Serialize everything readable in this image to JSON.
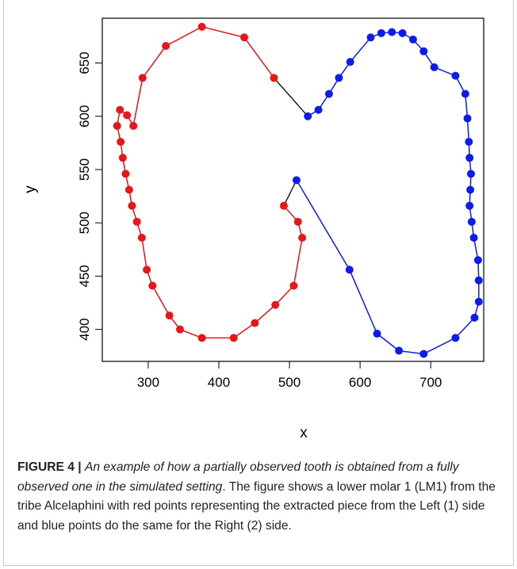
{
  "chart_data": {
    "type": "scatter",
    "xlabel": "x",
    "ylabel": "y",
    "xlim": [
      235,
      775
    ],
    "ylim": [
      370,
      692
    ],
    "x_ticks": [
      300,
      400,
      500,
      600,
      700
    ],
    "y_ticks": [
      400,
      450,
      500,
      550,
      600,
      650
    ],
    "x_tick_labels": [
      "300",
      "400",
      "500",
      "600",
      "700"
    ],
    "y_tick_labels": [
      "400",
      "450",
      "500",
      "550",
      "600",
      "650"
    ],
    "grid": false,
    "legend": "none",
    "connector_color": "#000000",
    "series": [
      {
        "color": "#e8161b",
        "points": [
          [
            478,
            636
          ],
          [
            436,
            674
          ],
          [
            376,
            684
          ],
          [
            325,
            666
          ],
          [
            292,
            636
          ],
          [
            279,
            591
          ],
          [
            270,
            601
          ],
          [
            260,
            606
          ],
          [
            256,
            591
          ],
          [
            261,
            576
          ],
          [
            264,
            561
          ],
          [
            268,
            546
          ],
          [
            273,
            531
          ],
          [
            277,
            516
          ],
          [
            284,
            501
          ],
          [
            291,
            486
          ],
          [
            298,
            456
          ],
          [
            306,
            441
          ],
          [
            330,
            413
          ],
          [
            345,
            400
          ],
          [
            376,
            392
          ],
          [
            421,
            392
          ],
          [
            451,
            406
          ],
          [
            480,
            423
          ],
          [
            506,
            441
          ],
          [
            518,
            486
          ],
          [
            512,
            501
          ],
          [
            492,
            516
          ]
        ]
      },
      {
        "color": "#0d1bef",
        "points": [
          [
            526,
            600
          ],
          [
            541,
            606
          ],
          [
            556,
            621
          ],
          [
            570,
            636
          ],
          [
            586,
            651
          ],
          [
            615,
            674
          ],
          [
            630,
            678
          ],
          [
            645,
            679
          ],
          [
            660,
            678
          ],
          [
            675,
            672
          ],
          [
            690,
            661
          ],
          [
            705,
            646
          ],
          [
            735,
            638
          ],
          [
            749,
            621
          ],
          [
            752,
            598
          ],
          [
            754,
            576
          ],
          [
            755,
            561
          ],
          [
            757,
            546
          ],
          [
            756,
            531
          ],
          [
            755,
            516
          ],
          [
            758,
            501
          ],
          [
            761,
            486
          ],
          [
            767,
            465
          ],
          [
            768,
            446
          ],
          [
            768,
            426
          ],
          [
            762,
            411
          ],
          [
            735,
            392
          ],
          [
            690,
            377
          ],
          [
            655,
            380
          ],
          [
            624,
            396
          ],
          [
            585,
            456
          ],
          [
            510,
            540
          ]
        ]
      }
    ],
    "connectors": [
      [
        [
          478,
          636
        ],
        [
          526,
          600
        ]
      ],
      [
        [
          492,
          516
        ],
        [
          510,
          540
        ]
      ]
    ]
  },
  "caption": {
    "label": "FIGURE 4 |",
    "italic": "An example of how a partially observed tooth is obtained from a fully observed one in the simulated setting",
    "body": ". The figure shows a lower molar 1 (LM1) from the tribe Alcelaphini with red points representing the extracted piece from the Left (1) side and blue points do the same for the Right (2) side."
  }
}
